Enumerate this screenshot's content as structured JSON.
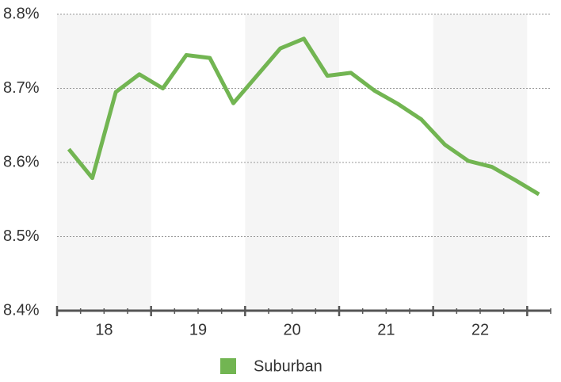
{
  "chart_data": {
    "type": "line",
    "categories": [
      null,
      null,
      null,
      null,
      null,
      null,
      null,
      null,
      null,
      null,
      null,
      null,
      null,
      null,
      null,
      null,
      null,
      null,
      null,
      null,
      null
    ],
    "year_labels": [
      "18",
      "19",
      "20",
      "21",
      "22"
    ],
    "series": [
      {
        "name": "Suburban",
        "color": "#72b552",
        "values": [
          8.618,
          8.579,
          8.695,
          8.719,
          8.7,
          8.745,
          8.741,
          8.68,
          8.717,
          8.754,
          8.767,
          8.717,
          8.721,
          8.697,
          8.679,
          8.658,
          8.624,
          8.602,
          8.594,
          8.576,
          8.557
        ]
      }
    ],
    "ylim": [
      8.4,
      8.8
    ],
    "yticks": [
      {
        "value": 8.4,
        "label": "8.4%"
      },
      {
        "value": 8.5,
        "label": "8.5%"
      },
      {
        "value": 8.6,
        "label": "8.6%"
      },
      {
        "value": 8.7,
        "label": "8.7%"
      },
      {
        "value": 8.8,
        "label": "8.8%"
      }
    ],
    "grid": true
  }
}
